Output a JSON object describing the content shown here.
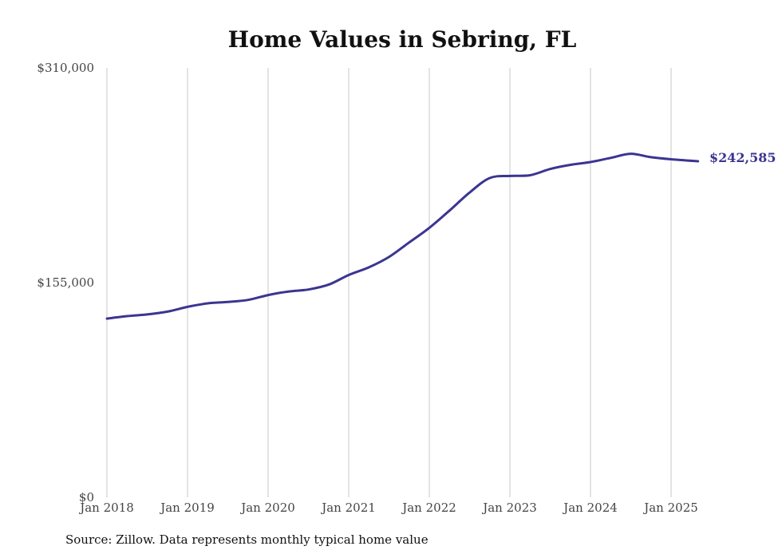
{
  "chart_data": {
    "type": "line",
    "title": "Home Values in Sebring, FL",
    "xlabel": "",
    "ylabel": "",
    "ylim": [
      0,
      310000
    ],
    "y_ticks": [
      "$310,000",
      "$155,000",
      "$0"
    ],
    "y_tick_values": [
      310000,
      155000,
      0
    ],
    "x_ticks": [
      "Jan 2018",
      "Jan 2019",
      "Jan 2020",
      "Jan 2021",
      "Jan 2022",
      "Jan 2023",
      "Jan 2024",
      "Jan 2025"
    ],
    "x_tick_values": [
      "2018-01",
      "2019-01",
      "2020-01",
      "2021-01",
      "2022-01",
      "2023-01",
      "2024-01",
      "2025-01"
    ],
    "xlim": [
      "2018-01",
      "2025-05"
    ],
    "grid": "vertical",
    "legend": "none",
    "series": [
      {
        "color": "#3b3591",
        "points": [
          [
            "2018-01",
            129000
          ],
          [
            "2018-04",
            130800
          ],
          [
            "2018-07",
            132000
          ],
          [
            "2018-10",
            134000
          ],
          [
            "2019-01",
            137500
          ],
          [
            "2019-04",
            140000
          ],
          [
            "2019-07",
            141000
          ],
          [
            "2019-10",
            142500
          ],
          [
            "2020-01",
            146000
          ],
          [
            "2020-04",
            148500
          ],
          [
            "2020-07",
            150000
          ],
          [
            "2020-10",
            153500
          ],
          [
            "2021-01",
            160500
          ],
          [
            "2021-04",
            166000
          ],
          [
            "2021-07",
            173500
          ],
          [
            "2021-10",
            184000
          ],
          [
            "2022-01",
            194500
          ],
          [
            "2022-04",
            207000
          ],
          [
            "2022-07",
            220000
          ],
          [
            "2022-10",
            230500
          ],
          [
            "2023-01",
            232000
          ],
          [
            "2023-04",
            232500
          ],
          [
            "2023-07",
            237000
          ],
          [
            "2023-10",
            240000
          ],
          [
            "2024-01",
            242000
          ],
          [
            "2024-04",
            245000
          ],
          [
            "2024-07",
            248000
          ],
          [
            "2024-10",
            245500
          ],
          [
            "2025-01",
            244000
          ],
          [
            "2025-05",
            242585
          ]
        ]
      }
    ],
    "end_label": "$242,585",
    "source": "Source: Zillow. Data represents monthly typical home value"
  }
}
